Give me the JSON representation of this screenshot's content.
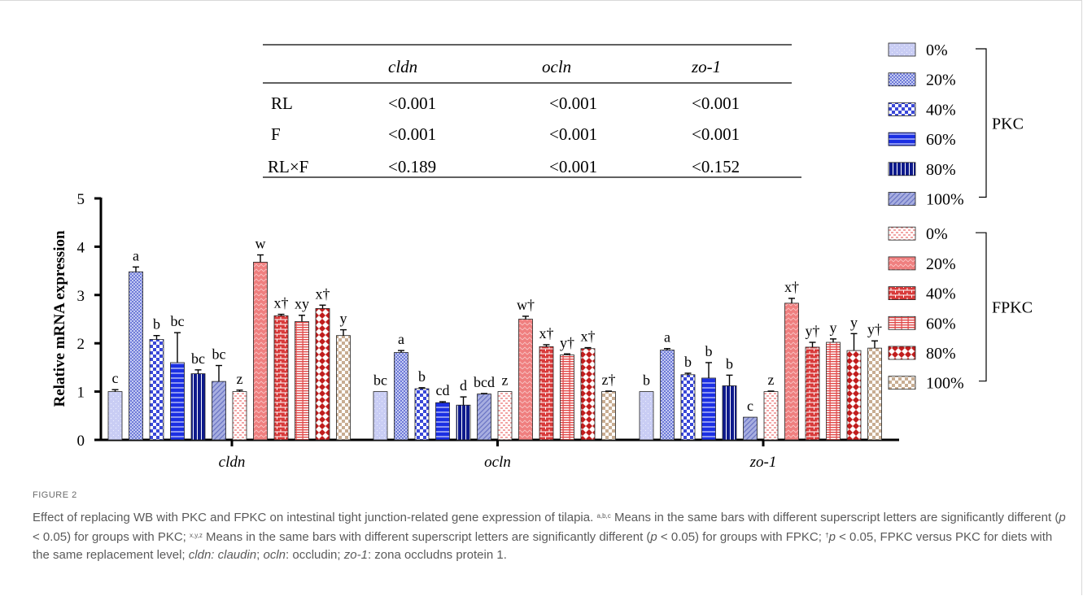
{
  "figure": {
    "label": "FIGURE 2",
    "caption": {
      "p1": "Effect of replacing WB with PKC and FPKC on intestinal tight junction-related gene expression of tilapia. ",
      "sup_abc": "a,b,c",
      "p2": " Means in the same bars with different superscript letters are significantly different (",
      "p_italic": "p",
      "p3": " < 0.05) for groups with PKC; ",
      "sup_xyz": "x,y,z",
      "p4": " Means in the same bars with different superscript letters are significantly different (",
      "p5": " < 0.05) for groups with FPKC; ",
      "sup_dagger": "†",
      "p6": " < 0.05, FPKC versus PKC for diets with the same replacement level; ",
      "g1": "cldn: claudin",
      "p7": "; ",
      "g2": "ocln",
      "p8": ": occludin; ",
      "g3": "zo-1",
      "p9": ": zona occludns protein 1."
    }
  },
  "stats_table": {
    "headers": [
      "",
      "cldn",
      "ocln",
      "zo-1"
    ],
    "rows": [
      [
        "RL",
        "<0.001",
        "<0.001",
        "<0.001"
      ],
      [
        "F",
        "<0.001",
        "<0.001",
        "<0.001"
      ],
      [
        "RL×F",
        "<0.189",
        "<0.001",
        "<0.152"
      ]
    ]
  },
  "chart_data": {
    "type": "bar",
    "ylabel": "Relative mRNA expression",
    "xlabel": "",
    "ylim": [
      0,
      5
    ],
    "yticks": [
      "0",
      "1",
      "2",
      "3",
      "4",
      "5"
    ],
    "categories": [
      "cldn",
      "ocln",
      "zo-1"
    ],
    "legend": {
      "placement": "right",
      "groups": [
        {
          "name": "PKC",
          "items": [
            "0%",
            "20%",
            "40%",
            "60%",
            "80%",
            "100%"
          ]
        },
        {
          "name": "FPKC",
          "items": [
            "0%",
            "20%",
            "40%",
            "60%",
            "80%",
            "100%"
          ]
        }
      ]
    },
    "series": [
      {
        "name": "PKC 0%",
        "values": [
          1.0,
          1.0,
          1.0
        ],
        "errors": [
          0.04,
          0.0,
          0.0
        ],
        "labels": [
          "c",
          "bc",
          "b"
        ]
      },
      {
        "name": "PKC 20%",
        "values": [
          3.48,
          1.81,
          1.86
        ],
        "errors": [
          0.1,
          0.04,
          0.03
        ],
        "labels": [
          "a",
          "a",
          "a"
        ]
      },
      {
        "name": "PKC 40%",
        "values": [
          2.08,
          1.06,
          1.35
        ],
        "errors": [
          0.08,
          0.02,
          0.03
        ],
        "labels": [
          "b",
          "b",
          "b"
        ]
      },
      {
        "name": "PKC 60%",
        "values": [
          1.6,
          0.77,
          1.28
        ],
        "errors": [
          0.62,
          0.02,
          0.32
        ],
        "labels": [
          "bc",
          "cd",
          "b"
        ]
      },
      {
        "name": "PKC 80%",
        "values": [
          1.37,
          0.72,
          1.12
        ],
        "errors": [
          0.08,
          0.17,
          0.22
        ],
        "labels": [
          "bc",
          "d",
          "b"
        ]
      },
      {
        "name": "PKC 100%",
        "values": [
          1.21,
          0.95,
          0.47
        ],
        "errors": [
          0.33,
          0.01,
          0.0
        ],
        "labels": [
          "bc",
          "bcd",
          "c"
        ]
      },
      {
        "name": "FPKC 0%",
        "values": [
          1.0,
          1.0,
          1.0
        ],
        "errors": [
          0.03,
          0.0,
          0.01
        ],
        "labels": [
          "z",
          "z",
          "z"
        ]
      },
      {
        "name": "FPKC 20%",
        "values": [
          3.68,
          2.5,
          2.83
        ],
        "errors": [
          0.15,
          0.06,
          0.1
        ],
        "labels": [
          "w",
          "w†",
          "x†"
        ]
      },
      {
        "name": "FPKC 40%",
        "values": [
          2.57,
          1.93,
          1.92
        ],
        "errors": [
          0.03,
          0.04,
          0.1
        ],
        "labels": [
          "x†",
          "x†",
          "y†"
        ]
      },
      {
        "name": "FPKC 60%",
        "values": [
          2.45,
          1.76,
          2.02
        ],
        "errors": [
          0.13,
          0.02,
          0.07
        ],
        "labels": [
          "xy",
          "y†",
          "y"
        ]
      },
      {
        "name": "FPKC 80%",
        "values": [
          2.72,
          1.89,
          1.85
        ],
        "errors": [
          0.07,
          0.02,
          0.35
        ],
        "labels": [
          "x†",
          "x†",
          "y"
        ]
      },
      {
        "name": "FPKC 100%",
        "values": [
          2.16,
          1.0,
          1.9
        ],
        "errors": [
          0.12,
          0.01,
          0.15
        ],
        "labels": [
          "y",
          "z†",
          "y†"
        ]
      }
    ]
  }
}
